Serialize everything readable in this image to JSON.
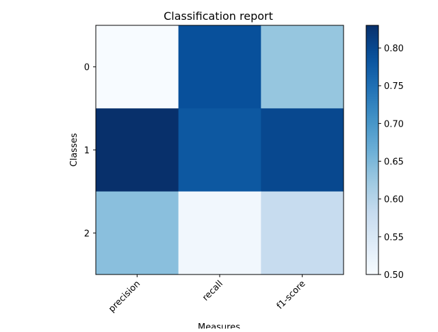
{
  "chart_data": {
    "type": "heatmap",
    "title": "Classification report",
    "xlabel": "Measures",
    "ylabel": "Classes",
    "x_categories": [
      "precision",
      "recall",
      "f1-score"
    ],
    "y_categories": [
      "0",
      "1",
      "2"
    ],
    "values": [
      [
        0.5,
        0.79,
        0.63
      ],
      [
        0.83,
        0.78,
        0.8
      ],
      [
        0.64,
        0.51,
        0.58
      ]
    ],
    "colormap": "Blues",
    "colorbar": {
      "min": 0.5,
      "max": 0.83,
      "ticks": [
        "0.50",
        "0.55",
        "0.60",
        "0.65",
        "0.70",
        "0.75",
        "0.80"
      ]
    },
    "grid": false
  }
}
